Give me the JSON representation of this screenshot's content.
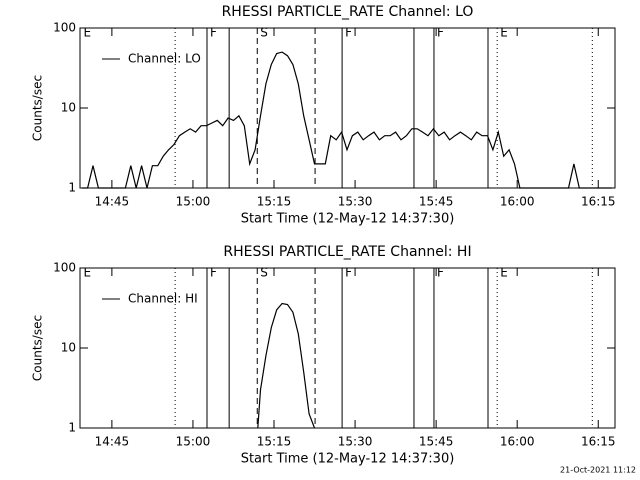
{
  "chart_data": [
    {
      "type": "line",
      "title": "RHESSI PARTICLE_RATE Channel: LO",
      "xlabel": "Start Time (12-May-12 14:37:30)",
      "ylabel": "Counts/sec",
      "log_y": true,
      "xlim": [
        1.6,
        100.6
      ],
      "ylim": [
        1,
        100
      ],
      "yticks": [
        1,
        10,
        100
      ],
      "xticks": [
        {
          "value": 7.5,
          "label": "14:45"
        },
        {
          "value": 22.5,
          "label": "15:00"
        },
        {
          "value": 37.5,
          "label": "15:15"
        },
        {
          "value": 52.5,
          "label": "15:30"
        },
        {
          "value": 67.5,
          "label": "15:45"
        },
        {
          "value": 82.5,
          "label": "16:00"
        },
        {
          "value": 97.5,
          "label": "16:15"
        }
      ],
      "x": [
        2,
        3,
        4,
        5,
        6,
        7,
        8,
        9,
        10,
        11,
        12,
        13,
        14,
        15,
        16,
        17,
        18,
        19,
        20,
        21,
        22,
        23,
        24,
        25,
        26,
        27,
        28,
        29,
        30,
        31,
        32,
        33,
        34,
        35,
        36,
        37,
        38,
        39,
        40,
        41,
        42,
        43,
        44,
        45,
        46,
        47,
        48,
        49,
        50,
        51,
        52,
        53,
        54,
        55,
        56,
        57,
        58,
        59,
        60,
        61,
        62,
        63,
        64,
        65,
        66,
        67,
        68,
        69,
        70,
        71,
        72,
        73,
        74,
        75,
        76,
        77,
        78,
        79,
        80,
        81,
        82,
        83,
        84,
        85,
        86,
        87,
        88,
        89,
        90,
        91,
        92,
        93,
        94,
        95,
        96,
        97,
        98,
        99,
        100
      ],
      "series": [
        {
          "name": "Channel: LO",
          "color": "#000000",
          "values": [
            1,
            1,
            1.9,
            1,
            1,
            1,
            1,
            1,
            1,
            1.9,
            1,
            1.9,
            1,
            1.9,
            1.9,
            2.5,
            3,
            3.5,
            4.5,
            5,
            5.5,
            5,
            6,
            6,
            6.5,
            7,
            6,
            7.5,
            7,
            8,
            6,
            2,
            3,
            8,
            20,
            35,
            48,
            50,
            45,
            35,
            20,
            8,
            4,
            2,
            2,
            2,
            4.5,
            4,
            5,
            3,
            4.5,
            5,
            4,
            4.5,
            5,
            4,
            4.5,
            4.5,
            5,
            4,
            4.5,
            5.5,
            5.5,
            5,
            4.5,
            5.5,
            4.5,
            5,
            4,
            4.5,
            5,
            4.5,
            4,
            5,
            4.5,
            4.5,
            3,
            5,
            2.5,
            3,
            2,
            1,
            1,
            1,
            1,
            1,
            1,
            1,
            1,
            1,
            1,
            2,
            1,
            1,
            1,
            1,
            1,
            1,
            1
          ]
        }
      ],
      "vlines": [
        {
          "x": 19.2,
          "style": "dotted"
        },
        {
          "x": 25.1,
          "style": "solid"
        },
        {
          "x": 29.2,
          "style": "solid"
        },
        {
          "x": 34.4,
          "style": "dashed"
        },
        {
          "x": 45.1,
          "style": "dashed"
        },
        {
          "x": 50.1,
          "style": "solid"
        },
        {
          "x": 63.4,
          "style": "solid"
        },
        {
          "x": 67.1,
          "style": "solid"
        },
        {
          "x": 77.1,
          "style": "solid"
        },
        {
          "x": 78.8,
          "style": "dotted"
        },
        {
          "x": 96.4,
          "style": "dotted"
        }
      ],
      "flags": [
        {
          "x": 1.7,
          "label": "E"
        },
        {
          "x": 25.1,
          "label": "F"
        },
        {
          "x": 34.4,
          "label": "S"
        },
        {
          "x": 50.1,
          "label": "F"
        },
        {
          "x": 67.1,
          "label": "F"
        },
        {
          "x": 78.8,
          "label": "E"
        }
      ]
    },
    {
      "type": "line",
      "title": "RHESSI PARTICLE_RATE Channel: HI",
      "xlabel": "Start Time (12-May-12 14:37:30)",
      "ylabel": "Counts/sec",
      "log_y": true,
      "xlim": [
        1.6,
        100.6
      ],
      "ylim": [
        1,
        100
      ],
      "yticks": [
        1,
        10,
        100
      ],
      "xticks": [
        {
          "value": 7.5,
          "label": "14:45"
        },
        {
          "value": 22.5,
          "label": "15:00"
        },
        {
          "value": 37.5,
          "label": "15:15"
        },
        {
          "value": 52.5,
          "label": "15:30"
        },
        {
          "value": 67.5,
          "label": "15:45"
        },
        {
          "value": 82.5,
          "label": "16:00"
        },
        {
          "value": 97.5,
          "label": "16:15"
        }
      ],
      "x": [
        34.5,
        35,
        36,
        37,
        38,
        39,
        40,
        41,
        42,
        43,
        44,
        45
      ],
      "series": [
        {
          "name": "Channel: HI",
          "color": "#000000",
          "values": [
            1,
            3,
            8,
            18,
            30,
            36,
            35,
            28,
            15,
            5,
            1.5,
            1
          ]
        }
      ],
      "vlines": [
        {
          "x": 19.2,
          "style": "dotted"
        },
        {
          "x": 25.1,
          "style": "solid"
        },
        {
          "x": 29.2,
          "style": "solid"
        },
        {
          "x": 34.4,
          "style": "dashed"
        },
        {
          "x": 45.1,
          "style": "dashed"
        },
        {
          "x": 50.1,
          "style": "solid"
        },
        {
          "x": 63.4,
          "style": "solid"
        },
        {
          "x": 67.1,
          "style": "solid"
        },
        {
          "x": 77.1,
          "style": "solid"
        },
        {
          "x": 78.8,
          "style": "dotted"
        },
        {
          "x": 96.4,
          "style": "dotted"
        }
      ],
      "flags": [
        {
          "x": 1.7,
          "label": "E"
        },
        {
          "x": 25.1,
          "label": "F"
        },
        {
          "x": 34.4,
          "label": "S"
        },
        {
          "x": 50.1,
          "label": "F"
        },
        {
          "x": 67.1,
          "label": "F"
        },
        {
          "x": 78.8,
          "label": "E"
        }
      ]
    }
  ],
  "timestamp": "21-Oct-2021 11:12"
}
